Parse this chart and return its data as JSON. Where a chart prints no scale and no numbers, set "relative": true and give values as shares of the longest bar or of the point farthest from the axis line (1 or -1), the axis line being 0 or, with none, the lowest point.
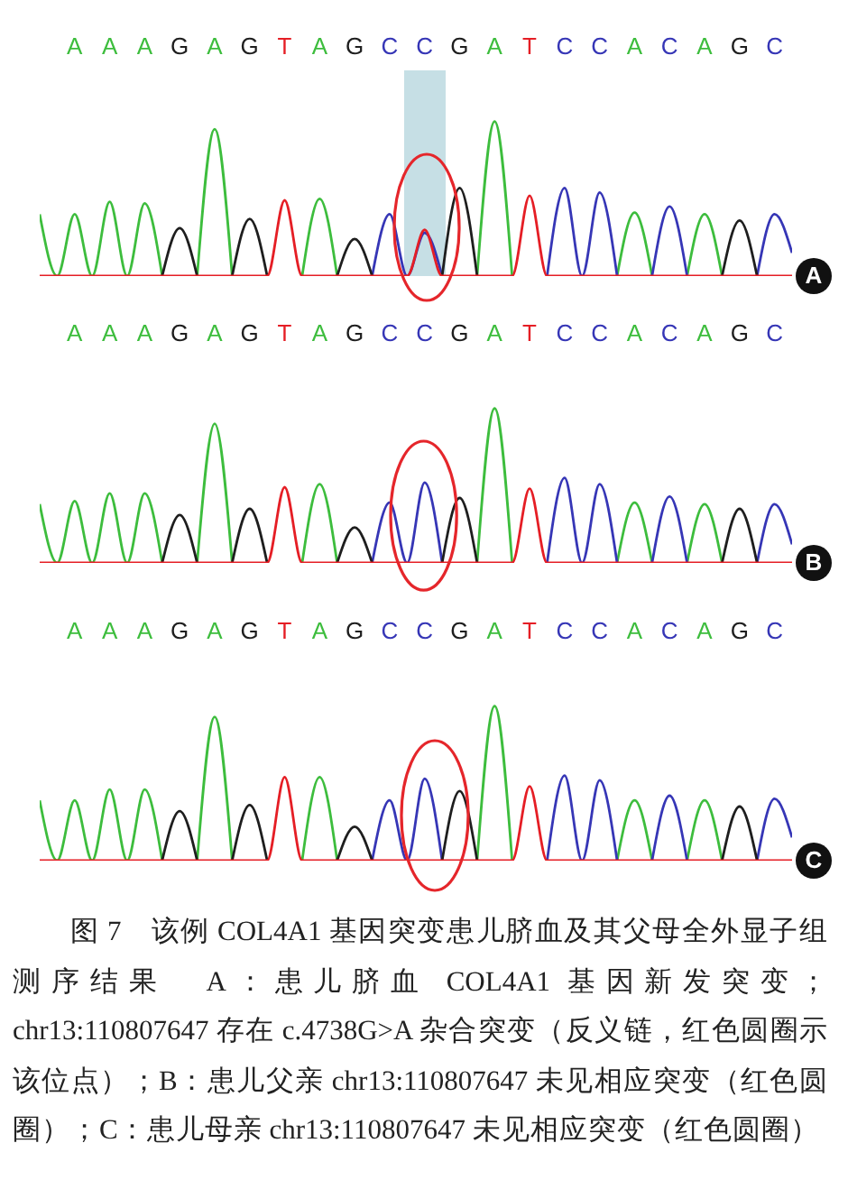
{
  "chart_data": [
    {
      "type": "line",
      "title": "A",
      "relative": true,
      "categories": [
        null,
        null,
        "A",
        null,
        "A",
        null,
        "A",
        null,
        "G",
        null,
        "A",
        null,
        "G",
        null,
        "T",
        null,
        "A",
        null,
        "G",
        null,
        "C",
        null,
        "C",
        null,
        "G",
        null,
        "A",
        null,
        "T",
        null,
        "C",
        null,
        "C",
        null,
        "A",
        null,
        "C",
        null,
        "A",
        null,
        "G",
        null,
        "C",
        null
      ],
      "series": [
        {
          "color": "#3dbd3d",
          "values": [
            0.4,
            0,
            0.4,
            0,
            0.48,
            0,
            0.47,
            0,
            null,
            0,
            0.95,
            0,
            null,
            null,
            null,
            0,
            0.5,
            0,
            null,
            null,
            null,
            null,
            null,
            null,
            null,
            0,
            1,
            0,
            null,
            null,
            null,
            null,
            null,
            0,
            0.41,
            0,
            null,
            0,
            0.4,
            0,
            null,
            null,
            null,
            null
          ]
        },
        {
          "color": "#3636b6",
          "values": [
            null,
            null,
            null,
            null,
            null,
            null,
            null,
            null,
            null,
            null,
            null,
            null,
            null,
            null,
            null,
            null,
            null,
            null,
            null,
            0,
            0.4,
            0,
            0.28,
            0,
            null,
            null,
            null,
            null,
            null,
            0,
            0.57,
            0,
            0.54,
            0,
            null,
            0,
            0.45,
            0,
            null,
            null,
            null,
            0,
            0.4,
            0.15
          ]
        },
        {
          "color": "#1e1e1e",
          "values": [
            null,
            null,
            null,
            null,
            null,
            null,
            null,
            0,
            0.31,
            0,
            null,
            0,
            0.37,
            0,
            null,
            null,
            null,
            0,
            0.24,
            0,
            null,
            null,
            null,
            0,
            0.57,
            0,
            null,
            null,
            null,
            null,
            null,
            null,
            null,
            null,
            null,
            null,
            null,
            null,
            null,
            0,
            0.36,
            0,
            null,
            null
          ]
        },
        {
          "color": "#e51e25",
          "values": [
            0,
            0,
            0,
            0,
            0,
            0,
            0,
            0,
            0,
            0,
            0,
            0,
            0,
            0,
            0.49,
            0,
            0,
            0,
            0,
            0,
            0,
            0,
            0.3,
            0,
            0,
            0,
            0,
            0,
            0.52,
            0,
            0,
            0,
            0,
            0,
            0,
            0,
            0,
            0,
            0,
            0,
            0,
            0,
            0,
            0
          ]
        }
      ]
    },
    {
      "type": "line",
      "title": "B",
      "relative": true,
      "categories": [
        null,
        null,
        "A",
        null,
        "A",
        null,
        "A",
        null,
        "G",
        null,
        "A",
        null,
        "G",
        null,
        "T",
        null,
        "A",
        null,
        "G",
        null,
        "C",
        null,
        "C",
        null,
        "G",
        null,
        "A",
        null,
        "T",
        null,
        "C",
        null,
        "C",
        null,
        "A",
        null,
        "C",
        null,
        "A",
        null,
        "G",
        null,
        "C",
        null
      ],
      "series": [
        {
          "color": "#3dbd3d",
          "values": [
            0.38,
            0,
            0.4,
            0,
            0.45,
            0,
            0.45,
            0,
            null,
            0,
            0.9,
            0,
            null,
            null,
            null,
            0,
            0.51,
            0,
            null,
            null,
            null,
            null,
            null,
            null,
            null,
            0,
            1,
            0,
            null,
            null,
            null,
            null,
            null,
            0,
            0.39,
            0,
            null,
            0,
            0.38,
            0,
            null,
            null,
            null,
            null
          ]
        },
        {
          "color": "#3636b6",
          "values": [
            null,
            null,
            null,
            null,
            null,
            null,
            null,
            null,
            null,
            null,
            null,
            null,
            null,
            null,
            null,
            null,
            null,
            null,
            null,
            0,
            0.39,
            0,
            0.52,
            0,
            null,
            null,
            null,
            null,
            null,
            0,
            0.55,
            0,
            0.51,
            0,
            null,
            0,
            0.43,
            0,
            null,
            null,
            null,
            0,
            0.38,
            0.12
          ]
        },
        {
          "color": "#1e1e1e",
          "values": [
            null,
            null,
            null,
            null,
            null,
            null,
            null,
            0,
            0.31,
            0,
            null,
            0,
            0.35,
            0,
            null,
            null,
            null,
            0,
            0.23,
            0,
            null,
            null,
            null,
            0,
            0.42,
            0,
            null,
            null,
            null,
            null,
            null,
            null,
            null,
            null,
            null,
            null,
            null,
            null,
            null,
            0,
            0.35,
            0,
            null,
            null
          ]
        },
        {
          "color": "#e51e25",
          "values": [
            0,
            0,
            0,
            0,
            0,
            0,
            0,
            0,
            0,
            0,
            0,
            0,
            0,
            0,
            0.49,
            0,
            0,
            0,
            0,
            0,
            0,
            0,
            0,
            0,
            0,
            0,
            0,
            0,
            0.48,
            0,
            0,
            0,
            0,
            0,
            0,
            0,
            0,
            0,
            0,
            0,
            0,
            0,
            0,
            0
          ]
        }
      ]
    },
    {
      "type": "line",
      "title": "C",
      "relative": true,
      "categories": [
        null,
        null,
        "A",
        null,
        "A",
        null,
        "A",
        null,
        "G",
        null,
        "A",
        null,
        "G",
        null,
        "T",
        null,
        "A",
        null,
        "G",
        null,
        "C",
        null,
        "C",
        null,
        "G",
        null,
        "A",
        null,
        "T",
        null,
        "C",
        null,
        "C",
        null,
        "A",
        null,
        "C",
        null,
        "A",
        null,
        "G",
        null,
        "C",
        null
      ],
      "series": [
        {
          "color": "#3dbd3d",
          "values": [
            0.39,
            0,
            0.39,
            0,
            0.46,
            0,
            0.46,
            0,
            null,
            0,
            0.93,
            0,
            null,
            null,
            null,
            0,
            0.54,
            0,
            null,
            null,
            null,
            null,
            null,
            null,
            null,
            0,
            1,
            0,
            null,
            null,
            null,
            null,
            null,
            0,
            0.39,
            0,
            null,
            0,
            0.39,
            0,
            null,
            null,
            null,
            null
          ]
        },
        {
          "color": "#3636b6",
          "values": [
            null,
            null,
            null,
            null,
            null,
            null,
            null,
            null,
            null,
            null,
            null,
            null,
            null,
            null,
            null,
            null,
            null,
            null,
            null,
            0,
            0.39,
            0,
            0.53,
            0,
            null,
            null,
            null,
            null,
            null,
            0,
            0.55,
            0,
            0.52,
            0,
            null,
            0,
            0.42,
            0,
            null,
            null,
            null,
            0,
            0.4,
            0.15
          ]
        },
        {
          "color": "#1e1e1e",
          "values": [
            null,
            null,
            null,
            null,
            null,
            null,
            null,
            0,
            0.32,
            0,
            null,
            0,
            0.36,
            0,
            null,
            null,
            null,
            0,
            0.22,
            0,
            null,
            null,
            null,
            0,
            0.45,
            0,
            null,
            null,
            null,
            null,
            null,
            null,
            null,
            null,
            null,
            null,
            null,
            null,
            null,
            0,
            0.35,
            0,
            null,
            null
          ]
        },
        {
          "color": "#e51e25",
          "values": [
            0,
            0,
            0,
            0,
            0,
            0,
            0,
            0,
            0,
            0,
            0,
            0,
            0,
            0,
            0.54,
            0,
            0,
            0,
            0,
            0,
            0,
            0,
            0,
            0,
            0,
            0,
            0,
            0,
            0.48,
            0,
            0,
            0,
            0,
            0,
            0,
            0,
            0,
            0,
            0,
            0,
            0,
            0,
            0,
            0
          ]
        }
      ],
      "annotations": [
        "图 7　该例 COL4A1 基因突变患儿脐血及其父母全外显子组测序结果　A：患儿脐血 COL4A1 基因新发突变；chr13:110807647 存在 c.4738G>A 杂合突变（反义链，红色圆圈示该位点）；B：患儿父亲 chr13:110807647 未见相应突变（红色圆圈）；C：患儿母亲 chr13:110807647 未见相应突变（红色圆圈）"
      ]
    }
  ]
}
